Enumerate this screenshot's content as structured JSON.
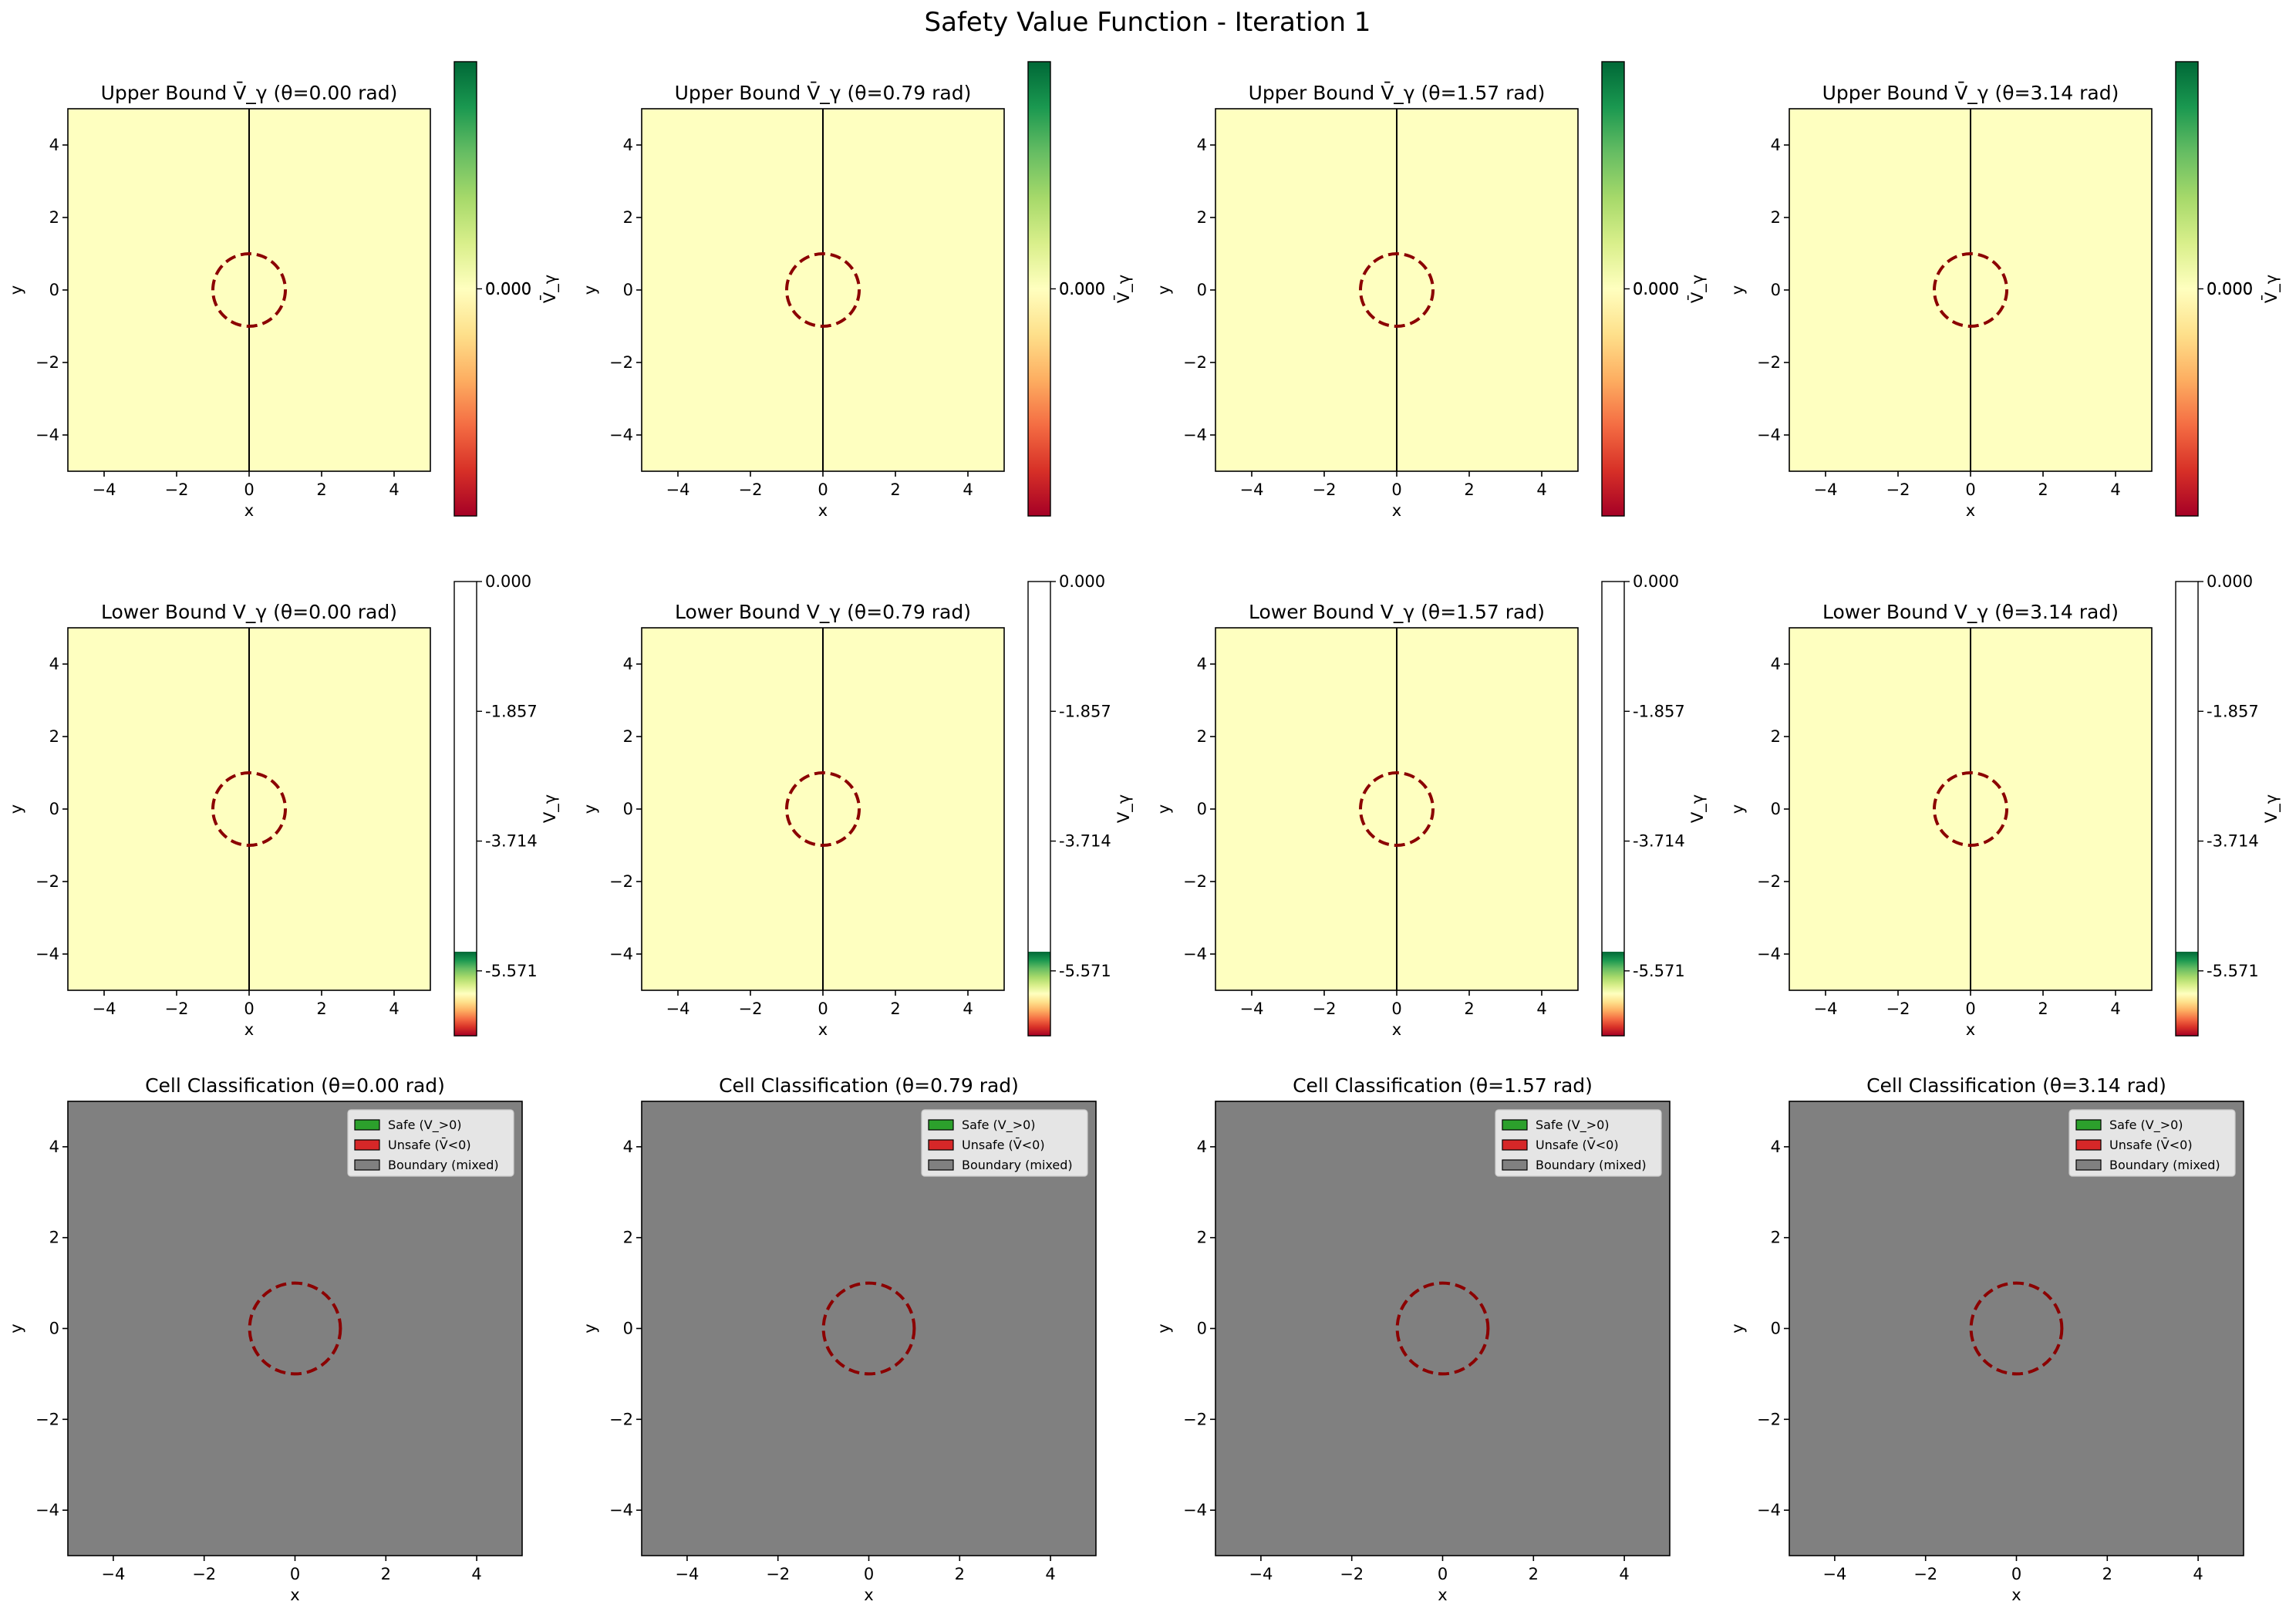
{
  "figure": {
    "suptitle": "Safety Value Function - Iteration 1"
  },
  "colors": {
    "heatmap_fill": "#feffc0",
    "classification_fill": "#808080",
    "obstacle_circle": "#8b0000",
    "grid_line": "#000000",
    "legend_bg": "#e5e5e5",
    "safe": "#2ca02c",
    "unsafe": "#d62728",
    "boundary": "#808080",
    "cmap_RdYlGn": [
      "#a50026",
      "#d73027",
      "#f46d43",
      "#fdae61",
      "#fee08b",
      "#ffffbf",
      "#d9ef8b",
      "#a6d96a",
      "#66bd63",
      "#1a9850",
      "#006837"
    ]
  },
  "rows": {
    "upper": {
      "titles": [
        "Upper Bound V̄_γ (θ=0.00 rad)",
        "Upper Bound V̄_γ (θ=0.79 rad)",
        "Upper Bound V̄_γ (θ=1.57 rad)",
        "Upper Bound V̄_γ (θ=3.14 rad)"
      ],
      "colorbar_label": "V̄_γ",
      "colorbar_ticks": [
        "0.000",
        "0.000"
      ]
    },
    "lower": {
      "titles": [
        "Lower Bound V_γ (θ=0.00 rad)",
        "Lower Bound V_γ (θ=0.79 rad)",
        "Lower Bound V_γ (θ=1.57 rad)",
        "Lower Bound V_γ (θ=3.14 rad)"
      ],
      "colorbar_label": "V_γ",
      "colorbar_ticks": [
        "0.000",
        "-1.857",
        "-3.714",
        "-5.571"
      ]
    },
    "classification": {
      "titles": [
        "Cell Classification (θ=0.00 rad)",
        "Cell Classification (θ=0.79 rad)",
        "Cell Classification (θ=1.57 rad)",
        "Cell Classification (θ=3.14 rad)"
      ],
      "legend": [
        "Safe (V_>0)",
        "Unsafe (V̄<0)",
        "Boundary (mixed)"
      ]
    }
  },
  "chart_data": [
    {
      "type": "heatmap",
      "panel": "upper-bound",
      "title": "Upper Bound V̄_γ (θ=0.00 rad)",
      "theta": 0.0,
      "xlabel": "x",
      "ylabel": "y",
      "xlim": [
        -5,
        5
      ],
      "ylim": [
        -5,
        5
      ],
      "xticks": [
        -4,
        -2,
        0,
        2,
        4
      ],
      "yticks": [
        -4,
        -2,
        0,
        2,
        4
      ],
      "value": 0.0,
      "colorbar_label": "V̄_γ",
      "colorbar_ticks": [
        0.0,
        0.0
      ],
      "obstacle": {
        "center": [
          0,
          0
        ],
        "radius": 1
      },
      "vertical_line_x": 0
    },
    {
      "type": "heatmap",
      "panel": "upper-bound",
      "title": "Upper Bound V̄_γ (θ=0.79 rad)",
      "theta": 0.79,
      "xlabel": "x",
      "ylabel": "y",
      "xlim": [
        -5,
        5
      ],
      "ylim": [
        -5,
        5
      ],
      "xticks": [
        -4,
        -2,
        0,
        2,
        4
      ],
      "yticks": [
        -4,
        -2,
        0,
        2,
        4
      ],
      "value": 0.0,
      "colorbar_label": "V̄_γ",
      "colorbar_ticks": [
        0.0,
        0.0
      ],
      "obstacle": {
        "center": [
          0,
          0
        ],
        "radius": 1
      },
      "vertical_line_x": 0
    },
    {
      "type": "heatmap",
      "panel": "upper-bound",
      "title": "Upper Bound V̄_γ (θ=1.57 rad)",
      "theta": 1.57,
      "xlabel": "x",
      "ylabel": "y",
      "xlim": [
        -5,
        5
      ],
      "ylim": [
        -5,
        5
      ],
      "xticks": [
        -4,
        -2,
        0,
        2,
        4
      ],
      "yticks": [
        -4,
        -2,
        0,
        2,
        4
      ],
      "value": 0.0,
      "colorbar_label": "V̄_γ",
      "colorbar_ticks": [
        0.0,
        0.0
      ],
      "obstacle": {
        "center": [
          0,
          0
        ],
        "radius": 1
      },
      "vertical_line_x": 0
    },
    {
      "type": "heatmap",
      "panel": "upper-bound",
      "title": "Upper Bound V̄_γ (θ=3.14 rad)",
      "theta": 3.14,
      "xlabel": "x",
      "ylabel": "y",
      "xlim": [
        -5,
        5
      ],
      "ylim": [
        -5,
        5
      ],
      "xticks": [
        -4,
        -2,
        0,
        2,
        4
      ],
      "yticks": [
        -4,
        -2,
        0,
        2,
        4
      ],
      "value": 0.0,
      "colorbar_label": "V̄_γ",
      "colorbar_ticks": [
        0.0,
        0.0
      ],
      "obstacle": {
        "center": [
          0,
          0
        ],
        "radius": 1
      },
      "vertical_line_x": 0
    },
    {
      "type": "heatmap",
      "panel": "lower-bound",
      "title": "Lower Bound V_γ (θ=0.00 rad)",
      "theta": 0.0,
      "xlabel": "x",
      "ylabel": "y",
      "xlim": [
        -5,
        5
      ],
      "ylim": [
        -5,
        5
      ],
      "xticks": [
        -4,
        -2,
        0,
        2,
        4
      ],
      "yticks": [
        -4,
        -2,
        0,
        2,
        4
      ],
      "value": 0.0,
      "colorbar_label": "V_γ",
      "colorbar_range": [
        -6.5,
        0.0
      ],
      "colorbar_ticks": [
        0.0,
        -1.857,
        -3.714,
        -5.571
      ],
      "obstacle": {
        "center": [
          0,
          0
        ],
        "radius": 1
      },
      "vertical_line_x": 0
    },
    {
      "type": "heatmap",
      "panel": "lower-bound",
      "title": "Lower Bound V_γ (θ=0.79 rad)",
      "theta": 0.79,
      "xlabel": "x",
      "ylabel": "y",
      "xlim": [
        -5,
        5
      ],
      "ylim": [
        -5,
        5
      ],
      "xticks": [
        -4,
        -2,
        0,
        2,
        4
      ],
      "yticks": [
        -4,
        -2,
        0,
        2,
        4
      ],
      "value": 0.0,
      "colorbar_label": "V_γ",
      "colorbar_range": [
        -6.5,
        0.0
      ],
      "colorbar_ticks": [
        0.0,
        -1.857,
        -3.714,
        -5.571
      ],
      "obstacle": {
        "center": [
          0,
          0
        ],
        "radius": 1
      },
      "vertical_line_x": 0
    },
    {
      "type": "heatmap",
      "panel": "lower-bound",
      "title": "Lower Bound V_γ (θ=1.57 rad)",
      "theta": 1.57,
      "xlabel": "x",
      "ylabel": "y",
      "xlim": [
        -5,
        5
      ],
      "ylim": [
        -5,
        5
      ],
      "xticks": [
        -4,
        -2,
        0,
        2,
        4
      ],
      "yticks": [
        -4,
        -2,
        0,
        2,
        4
      ],
      "value": 0.0,
      "colorbar_label": "V_γ",
      "colorbar_range": [
        -6.5,
        0.0
      ],
      "colorbar_ticks": [
        0.0,
        -1.857,
        -3.714,
        -5.571
      ],
      "obstacle": {
        "center": [
          0,
          0
        ],
        "radius": 1
      },
      "vertical_line_x": 0
    },
    {
      "type": "heatmap",
      "panel": "lower-bound",
      "title": "Lower Bound V_γ (θ=3.14 rad)",
      "theta": 3.14,
      "xlabel": "x",
      "ylabel": "y",
      "xlim": [
        -5,
        5
      ],
      "ylim": [
        -5,
        5
      ],
      "xticks": [
        -4,
        -2,
        0,
        2,
        4
      ],
      "yticks": [
        -4,
        -2,
        0,
        2,
        4
      ],
      "value": 0.0,
      "colorbar_label": "V_γ",
      "colorbar_range": [
        -6.5,
        0.0
      ],
      "colorbar_ticks": [
        0.0,
        -1.857,
        -3.714,
        -5.571
      ],
      "obstacle": {
        "center": [
          0,
          0
        ],
        "radius": 1
      },
      "vertical_line_x": 0
    },
    {
      "type": "heatmap",
      "panel": "classification",
      "title": "Cell Classification (θ=0.00 rad)",
      "theta": 0.0,
      "xlabel": "x",
      "ylabel": "y",
      "xlim": [
        -5,
        5
      ],
      "ylim": [
        -5,
        5
      ],
      "xticks": [
        -4,
        -2,
        0,
        2,
        4
      ],
      "yticks": [
        -4,
        -2,
        0,
        2,
        4
      ],
      "classification": "Boundary (mixed)",
      "legend": [
        "Safe (V_>0)",
        "Unsafe (V̄<0)",
        "Boundary (mixed)"
      ],
      "legend_loc": "upper right",
      "obstacle": {
        "center": [
          0,
          0
        ],
        "radius": 1
      }
    },
    {
      "type": "heatmap",
      "panel": "classification",
      "title": "Cell Classification (θ=0.79 rad)",
      "theta": 0.79,
      "xlabel": "x",
      "ylabel": "y",
      "xlim": [
        -5,
        5
      ],
      "ylim": [
        -5,
        5
      ],
      "xticks": [
        -4,
        -2,
        0,
        2,
        4
      ],
      "yticks": [
        -4,
        -2,
        0,
        2,
        4
      ],
      "classification": "Boundary (mixed)",
      "legend": [
        "Safe (V_>0)",
        "Unsafe (V̄<0)",
        "Boundary (mixed)"
      ],
      "legend_loc": "upper right",
      "obstacle": {
        "center": [
          0,
          0
        ],
        "radius": 1
      }
    },
    {
      "type": "heatmap",
      "panel": "classification",
      "title": "Cell Classification (θ=1.57 rad)",
      "theta": 1.57,
      "xlabel": "x",
      "ylabel": "y",
      "xlim": [
        -5,
        5
      ],
      "ylim": [
        -5,
        5
      ],
      "xticks": [
        -4,
        -2,
        0,
        2,
        4
      ],
      "yticks": [
        -4,
        -2,
        0,
        2,
        4
      ],
      "classification": "Boundary (mixed)",
      "legend": [
        "Safe (V_>0)",
        "Unsafe (V̄<0)",
        "Boundary (mixed)"
      ],
      "legend_loc": "upper right",
      "obstacle": {
        "center": [
          0,
          0
        ],
        "radius": 1
      }
    },
    {
      "type": "heatmap",
      "panel": "classification",
      "title": "Cell Classification (θ=3.14 rad)",
      "theta": 3.14,
      "xlabel": "x",
      "ylabel": "y",
      "xlim": [
        -5,
        5
      ],
      "ylim": [
        -5,
        5
      ],
      "xticks": [
        -4,
        -2,
        0,
        2,
        4
      ],
      "yticks": [
        -4,
        -2,
        0,
        2,
        4
      ],
      "classification": "Boundary (mixed)",
      "legend": [
        "Safe (V_>0)",
        "Unsafe (V̄<0)",
        "Boundary (mixed)"
      ],
      "legend_loc": "upper right",
      "obstacle": {
        "center": [
          0,
          0
        ],
        "radius": 1
      }
    }
  ]
}
